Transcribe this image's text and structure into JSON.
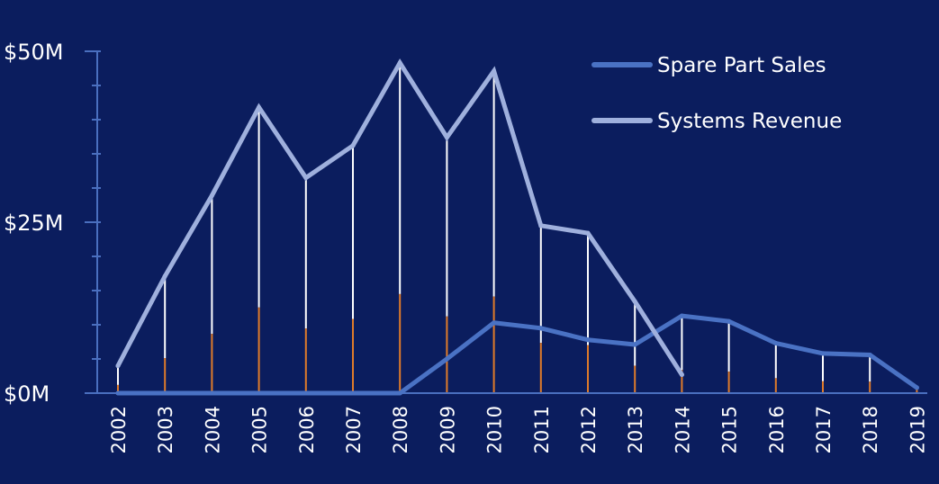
{
  "chart_data": {
    "type": "line",
    "title": "",
    "xlabel": "",
    "ylabel": "",
    "categories": [
      "2002",
      "2003",
      "2004",
      "2005",
      "2006",
      "2007",
      "2008",
      "2009",
      "2010",
      "2011",
      "2012",
      "2013",
      "2014",
      "2015",
      "2016",
      "2017",
      "2018",
      "2019"
    ],
    "ylim": [
      0,
      50
    ],
    "y_unit": "$M",
    "y_ticks": [
      0,
      25,
      50
    ],
    "y_tick_labels": [
      "$0M",
      "$25M",
      "$50M"
    ],
    "grid": false,
    "legend_position": "top-right",
    "series": [
      {
        "name": "Spare Part Sales",
        "color": "#4a72c4",
        "values": [
          0,
          0,
          0,
          0,
          0,
          0,
          0,
          5,
          10.3,
          9.5,
          7.8,
          7.1,
          11.3,
          10.5,
          7.3,
          5.8,
          5.6,
          0.8
        ]
      },
      {
        "name": "Systems Revenue",
        "color": "#9fb0dd",
        "values": [
          4,
          17.1,
          28.9,
          41.8,
          31.5,
          36.2,
          48.3,
          37.4,
          47.1,
          24.5,
          23.4,
          13.4,
          2.7,
          null,
          null,
          null,
          null,
          null
        ]
      }
    ],
    "drop_lines": {
      "upper_color": "#ffffff",
      "lower_color": "#e07b2a"
    },
    "colors": {
      "background": "#0b1d5e",
      "axis": "#4a6fbf"
    }
  }
}
